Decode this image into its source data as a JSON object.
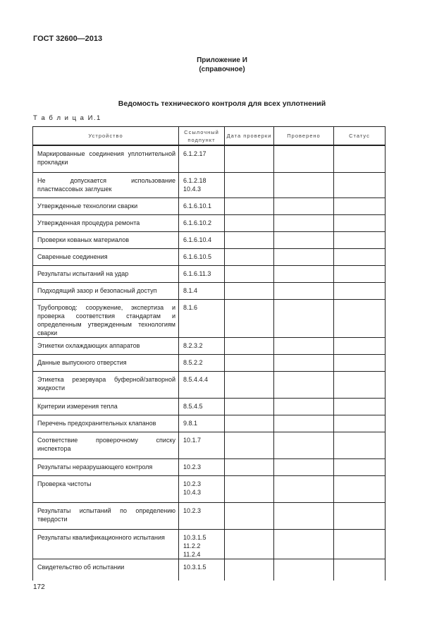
{
  "header": "ГОСТ 32600—2013",
  "appendix": {
    "title": "Приложение И",
    "subtitle": "(справочное)"
  },
  "title": "Ведомость технического контроля для всех уплотнений",
  "table_caption": "Т а б л и ц а  И.1",
  "table": {
    "columns": [
      "Устройство",
      "Ссылочный подпункт",
      "Дата проверки",
      "Проверено",
      "Статус"
    ],
    "rows": [
      {
        "device": "Маркированные соединения уплотнительной прокладки",
        "ref": "6.1.2.17"
      },
      {
        "device": "Не допускается использование пластмассовых заглушек",
        "ref": "6.1.2.18\n10.4.3"
      },
      {
        "device": "Утвержденные технологии сварки",
        "ref": "6.1.6.10.1"
      },
      {
        "device": "Утвержденная процедура ремонта",
        "ref": "6.1.6.10.2"
      },
      {
        "device": "Проверки кованых материалов",
        "ref": "6.1.6.10.4"
      },
      {
        "device": "Сваренные соединения",
        "ref": "6.1.6.10.5"
      },
      {
        "device": "Результаты испытаний на удар",
        "ref": "6.1.6.11.3"
      },
      {
        "device": "Подходящий зазор и безопасный доступ",
        "ref": "8.1.4"
      },
      {
        "device": "Трубопровод: сооружение, экспертиза и проверка соответствия стандартам и определенным утвержденным технологиям сварки",
        "ref": "8.1.6"
      },
      {
        "device": "Этикетки охлаждающих аппаратов",
        "ref": "8.2.3.2"
      },
      {
        "device": "Данные выпускного отверстия",
        "ref": "8.5.2.2"
      },
      {
        "device": "Этикетка резервуара буферной/затворной жидкости",
        "ref": "8.5.4.4.4"
      },
      {
        "device": "Критерии измерения тепла",
        "ref": "8.5.4.5"
      },
      {
        "device": "Перечень предохранительных клапанов",
        "ref": "9.8.1"
      },
      {
        "device": "Соответствие проверочному списку инспектора",
        "ref": "10.1.7"
      },
      {
        "device": "Результаты неразрушающего контроля",
        "ref": "10.2.3"
      },
      {
        "device": "Проверка чистоты",
        "ref": "10.2.3\n10.4.3"
      },
      {
        "device": "Результаты испытаний по определению твердости",
        "ref": "10.2.3"
      },
      {
        "device": "Результаты квалификационного испытания",
        "ref": "10.3.1.5\n11.2.2\n11.2.4"
      },
      {
        "device": "Свидетельство об испытании",
        "ref": "10.3.1.5"
      }
    ]
  },
  "page_number": "172"
}
